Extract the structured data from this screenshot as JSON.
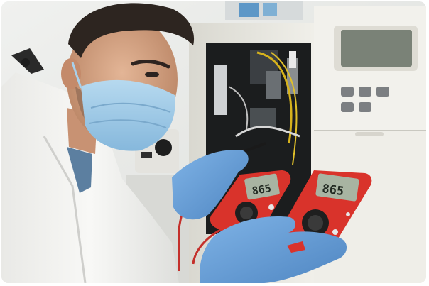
{
  "photo": {
    "subject": "technician-with-multimeters",
    "meter_left": {
      "reading": "865"
    },
    "meter_right": {
      "reading": "865"
    }
  },
  "colors": {
    "wall": "#e7e8e6",
    "lab_coat": "#f4f4f2",
    "glove": "#6aa4dc",
    "mask": "#9ecae6",
    "multimeter_body": "#d9332b",
    "analyzer_panel": "#ecebe4",
    "lcd_screen": "#a8b4a2",
    "probe_wire": "#c4302b"
  }
}
